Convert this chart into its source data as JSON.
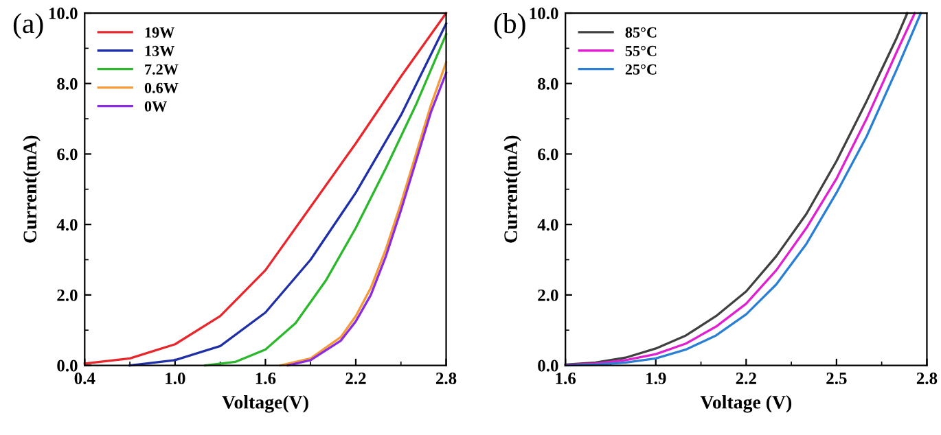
{
  "chart_data": [
    {
      "type": "line",
      "title": "(a)",
      "xlabel": "Voltage(V)",
      "ylabel": "Current(mA)",
      "xlim": [
        0.4,
        2.8
      ],
      "xticks": [
        0.4,
        {
          "value": 1,
          "label": "1.0"
        },
        1.6,
        2.2,
        2.8
      ],
      "ylim": [
        0,
        10
      ],
      "yticks": [
        {
          "value": 0,
          "label": "0.0"
        },
        {
          "value": 2,
          "label": "2.0"
        },
        {
          "value": 4,
          "label": "4.0"
        },
        {
          "value": 6,
          "label": "6.0"
        },
        {
          "value": 8,
          "label": "8.0"
        },
        {
          "value": 10,
          "label": "10.0"
        }
      ],
      "legend": "top left",
      "grid": false,
      "marker": "none",
      "line_style": "solid",
      "series": [
        {
          "name": "19W",
          "color": "#e8262b",
          "x": [
            0.4,
            0.7,
            1.0,
            1.3,
            1.6,
            1.9,
            2.2,
            2.5,
            2.8
          ],
          "values": [
            0.05,
            0.2,
            0.6,
            1.4,
            2.7,
            4.5,
            6.3,
            8.2,
            10.0
          ]
        },
        {
          "name": "13W",
          "color": "#1f2fa8",
          "x": [
            0.7,
            1.0,
            1.3,
            1.6,
            1.9,
            2.2,
            2.5,
            2.8
          ],
          "values": [
            0.0,
            0.15,
            0.55,
            1.5,
            3.0,
            4.9,
            7.1,
            9.7
          ]
        },
        {
          "name": "7.2W",
          "color": "#2cb82c",
          "x": [
            1.2,
            1.4,
            1.6,
            1.8,
            2.0,
            2.2,
            2.4,
            2.6,
            2.8
          ],
          "values": [
            0.0,
            0.1,
            0.45,
            1.2,
            2.4,
            3.9,
            5.6,
            7.4,
            9.4
          ]
        },
        {
          "name": "0.6W",
          "color": "#f59a3a",
          "x": [
            1.7,
            1.9,
            2.1,
            2.2,
            2.3,
            2.4,
            2.5,
            2.6,
            2.7,
            2.8
          ],
          "values": [
            0.0,
            0.2,
            0.8,
            1.4,
            2.2,
            3.3,
            4.6,
            6.0,
            7.4,
            8.6
          ]
        },
        {
          "name": "0W",
          "color": "#8a2be2",
          "x": [
            1.75,
            1.9,
            2.1,
            2.2,
            2.3,
            2.4,
            2.5,
            2.6,
            2.7,
            2.8
          ],
          "values": [
            0.0,
            0.15,
            0.7,
            1.25,
            2.0,
            3.1,
            4.4,
            5.8,
            7.2,
            8.3
          ]
        }
      ]
    },
    {
      "type": "line",
      "title": "(b)",
      "xlabel": "Voltage (V)",
      "ylabel": "Current(mA)",
      "xlim": [
        1.6,
        2.8
      ],
      "xticks": [
        1.6,
        1.9,
        2.2,
        2.5,
        2.8
      ],
      "ylim": [
        0,
        10
      ],
      "yticks": [
        {
          "value": 0,
          "label": "0.0"
        },
        {
          "value": 2,
          "label": "2.0"
        },
        {
          "value": 4,
          "label": "4.0"
        },
        {
          "value": 6,
          "label": "6.0"
        },
        {
          "value": 8,
          "label": "8.0"
        },
        {
          "value": 10,
          "label": "10.0"
        }
      ],
      "legend": "top left",
      "grid": false,
      "marker": "none",
      "line_style": "solid",
      "series": [
        {
          "name": "85°C",
          "color": "#404040",
          "x": [
            1.6,
            1.7,
            1.8,
            1.9,
            2.0,
            2.1,
            2.2,
            2.3,
            2.4,
            2.5,
            2.6,
            2.7,
            2.735
          ],
          "values": [
            0.02,
            0.08,
            0.22,
            0.48,
            0.85,
            1.4,
            2.1,
            3.1,
            4.3,
            5.8,
            7.5,
            9.3,
            10.0
          ]
        },
        {
          "name": "55°C",
          "color": "#e020d0",
          "x": [
            1.6,
            1.7,
            1.8,
            1.9,
            2.0,
            2.1,
            2.2,
            2.3,
            2.4,
            2.5,
            2.6,
            2.7,
            2.76
          ],
          "values": [
            0.01,
            0.05,
            0.15,
            0.32,
            0.62,
            1.1,
            1.75,
            2.7,
            3.9,
            5.3,
            7.0,
            8.9,
            10.0
          ]
        },
        {
          "name": "25°C",
          "color": "#2a7fd4",
          "x": [
            1.6,
            1.7,
            1.8,
            1.9,
            2.0,
            2.1,
            2.2,
            2.3,
            2.4,
            2.5,
            2.6,
            2.7,
            2.78
          ],
          "values": [
            0.0,
            0.02,
            0.08,
            0.2,
            0.45,
            0.85,
            1.45,
            2.3,
            3.45,
            4.9,
            6.5,
            8.4,
            10.0
          ]
        }
      ]
    }
  ]
}
